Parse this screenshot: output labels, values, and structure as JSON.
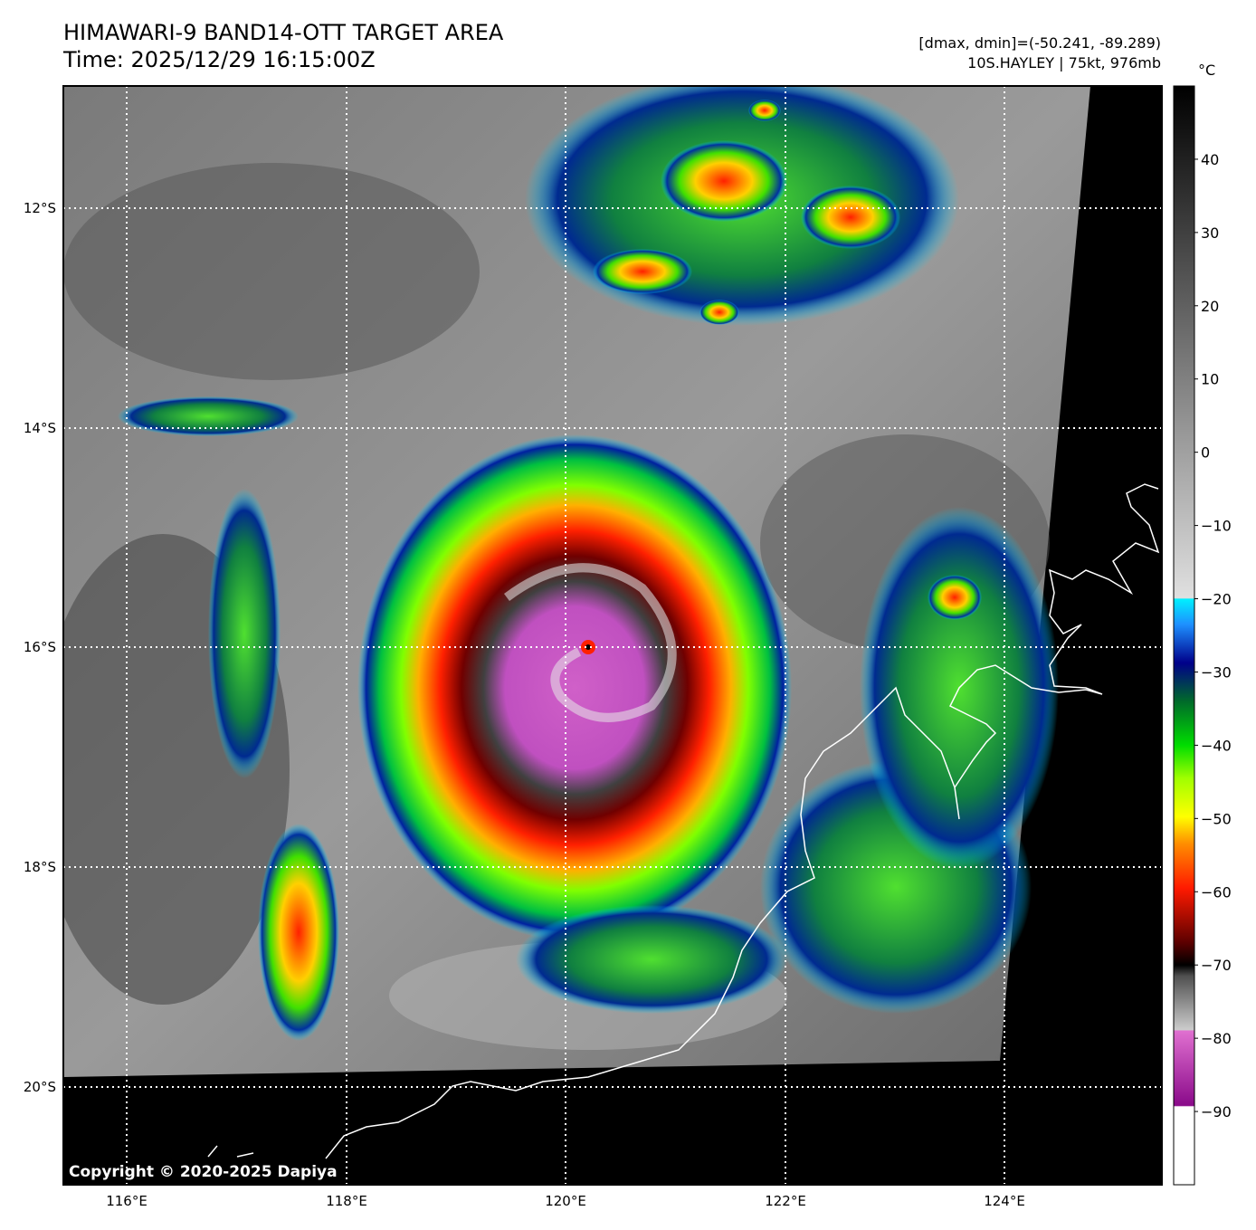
{
  "header": {
    "title_line1": "HIMAWARI-9 BAND14-OTT TARGET AREA",
    "title_line2": "Time: 2025/12/29 16:15:00Z",
    "dmax_dmin": "[dmax, dmin]=(-50.241, -89.289)",
    "storm_info": "10S.HAYLEY | 75kt, 976mb"
  },
  "colorbar": {
    "unit": "°C",
    "ticks": [
      40,
      30,
      20,
      10,
      0,
      -10,
      -20,
      -30,
      -40,
      -50,
      -60,
      -70,
      -80,
      -90
    ],
    "range": [
      -100,
      50
    ]
  },
  "axes": {
    "lon_labels": [
      "116°E",
      "118°E",
      "120°E",
      "122°E",
      "124°E"
    ],
    "lat_labels": [
      "12°S",
      "14°S",
      "16°S",
      "18°S",
      "20°S"
    ]
  },
  "colors": {
    "background": "#000000",
    "gridline": "#ffffff",
    "coastline": "#ffffff"
  },
  "copyright": "Copyright © 2020-2025 Dapiya"
}
